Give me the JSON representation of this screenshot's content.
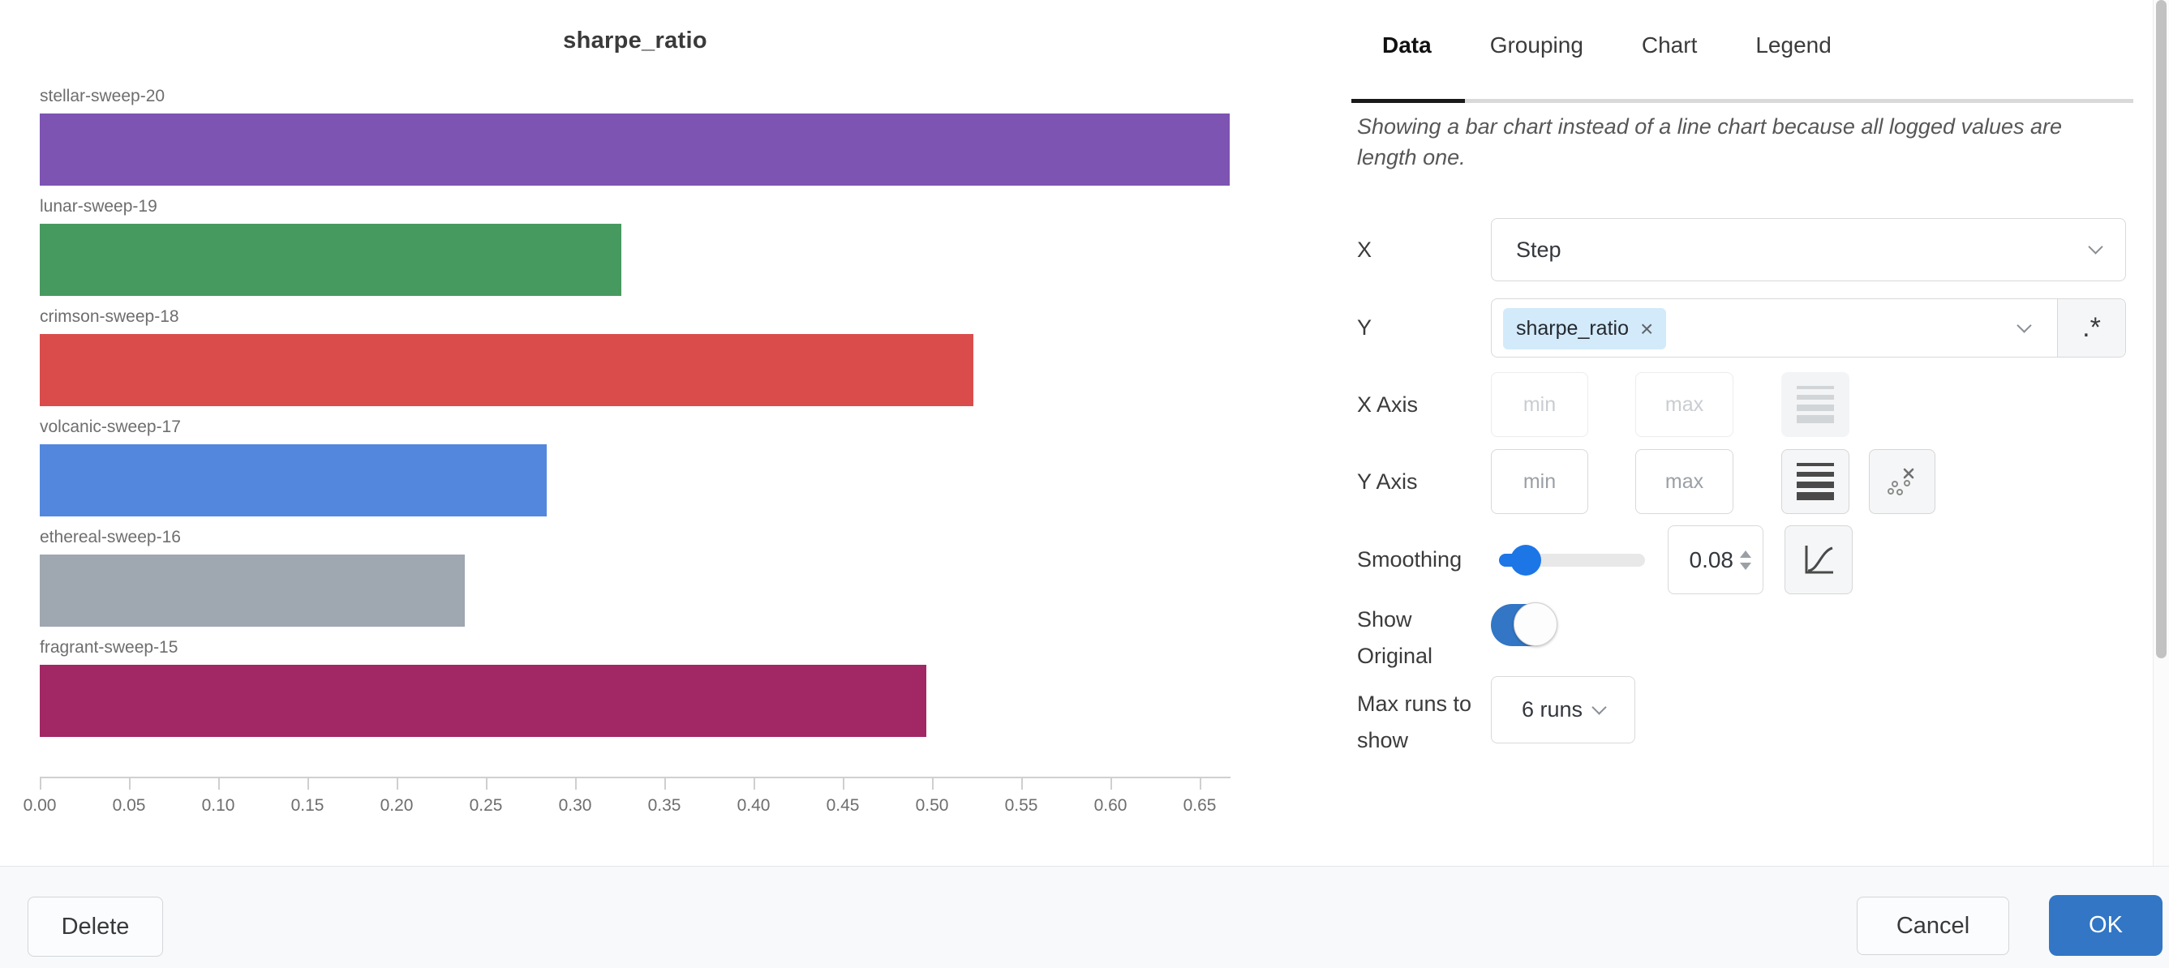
{
  "chart_data": {
    "type": "bar",
    "orientation": "horizontal",
    "title": "sharpe_ratio",
    "categories": [
      "stellar-sweep-20",
      "lunar-sweep-19",
      "crimson-sweep-18",
      "volcanic-sweep-17",
      "ethereal-sweep-16",
      "fragrant-sweep-15"
    ],
    "values": [
      0.667,
      0.326,
      0.523,
      0.284,
      0.238,
      0.497
    ],
    "bar_colors": [
      "#7D54B2",
      "#479A5F",
      "#DA4C4C",
      "#5387DD",
      "#9FA7B0",
      "#A12864"
    ],
    "x_ticks": [
      0,
      0.05,
      0.1,
      0.15,
      0.2,
      0.25,
      0.3,
      0.35,
      0.4,
      0.45,
      0.5,
      0.55,
      0.6,
      0.65
    ],
    "x_tick_labels": [
      "0.00",
      "0.05",
      "0.10",
      "0.15",
      "0.20",
      "0.25",
      "0.30",
      "0.35",
      "0.40",
      "0.45",
      "0.50",
      "0.55",
      "0.60",
      "0.65"
    ],
    "xlabel": "",
    "ylabel": "",
    "xlim": [
      0,
      0.667
    ],
    "grid": false,
    "legend": false
  },
  "panel": {
    "tabs": [
      {
        "label": "Data",
        "active": true
      },
      {
        "label": "Grouping",
        "active": false
      },
      {
        "label": "Chart",
        "active": false
      },
      {
        "label": "Legend",
        "active": false
      }
    ],
    "note": "Showing a bar chart instead of a line chart because all logged values are length one.",
    "rows": {
      "x": {
        "label": "X",
        "value": "Step"
      },
      "y": {
        "label": "Y",
        "chip_label": "sharpe_ratio",
        "regex_label": ".*"
      },
      "x_axis": {
        "label": "X Axis",
        "min_placeholder": "min",
        "max_placeholder": "max"
      },
      "y_axis": {
        "label": "Y Axis",
        "min_placeholder": "min",
        "max_placeholder": "max"
      },
      "smoothing": {
        "label": "Smoothing",
        "value": "0.08"
      },
      "show_original": {
        "label": "Show Original",
        "state": "on"
      },
      "max_runs": {
        "label": "Max runs to show",
        "value": "6 runs"
      }
    }
  },
  "footer": {
    "delete_label": "Delete",
    "cancel_label": "Cancel",
    "ok_label": "OK"
  },
  "icons": {
    "close": "×",
    "chevron_down": "chevron-down",
    "regex": ".*",
    "log_scale": "log-scale",
    "ignore_outliers": "ignore-outliers",
    "running_average": "running-average"
  },
  "colors": {
    "accent_blue": "#3276C5",
    "slider_blue": "#1C76E6",
    "chip_bg": "#D3EAFB",
    "tab_active_underline": "#1A1A1A"
  }
}
